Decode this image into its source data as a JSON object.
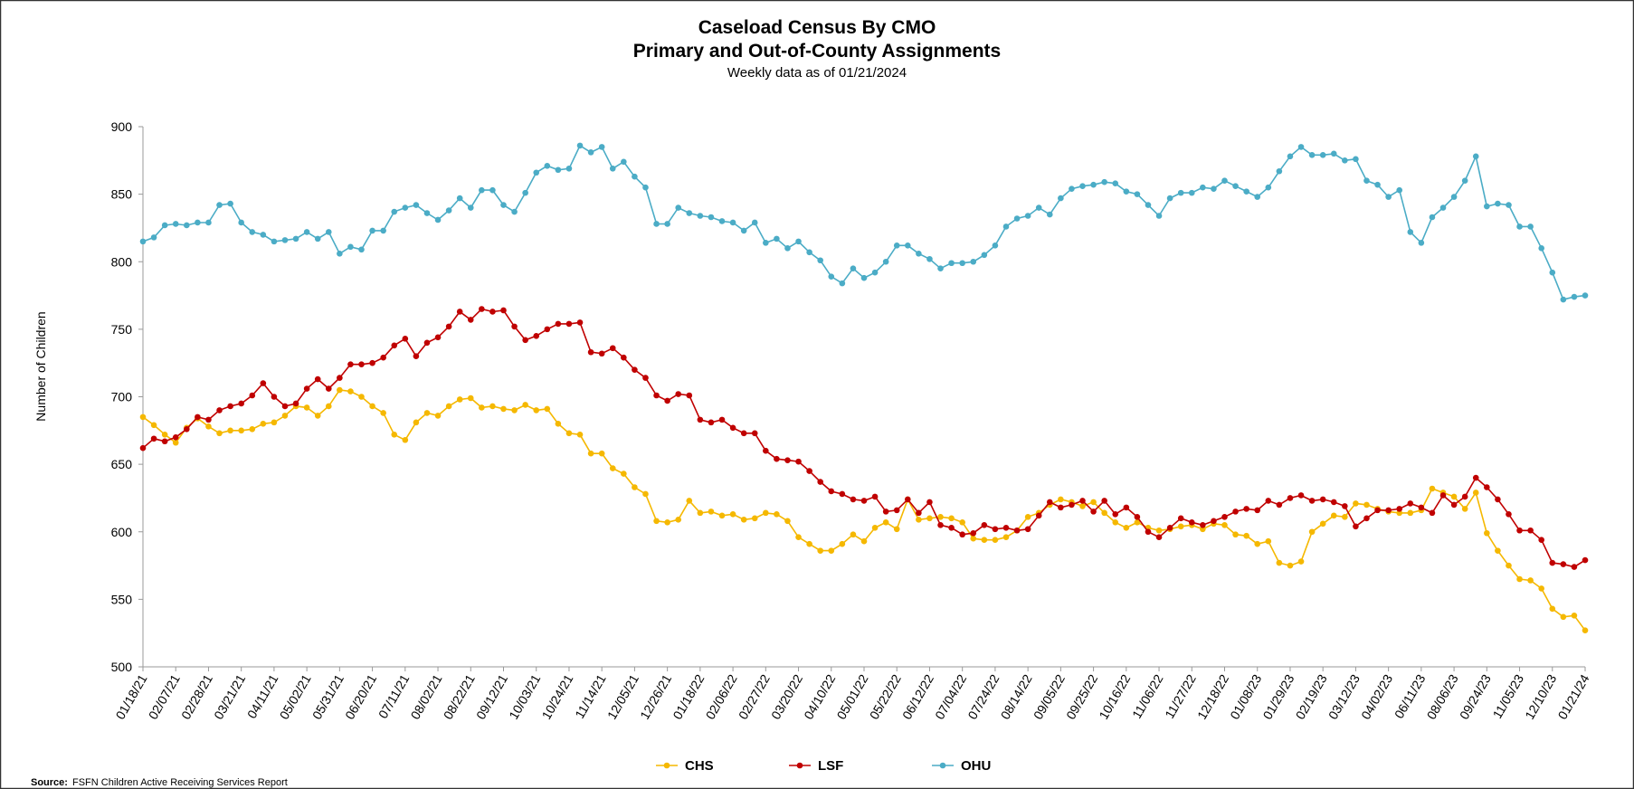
{
  "chart_data": {
    "type": "line",
    "title": "Caseload Census By CMO",
    "subtitle": "Primary and Out-of-County Assignments",
    "note": "Weekly data as of 01/21/2024",
    "y_label": "Number of Children",
    "source_label": "Source:",
    "source": "FSFN Children Active Receiving Services Report",
    "ylim": [
      500,
      900
    ],
    "yticks": [
      500,
      550,
      600,
      650,
      700,
      750,
      800,
      850,
      900
    ],
    "grid": false,
    "legend": "bottom",
    "categories": [
      "01/18/21",
      null,
      null,
      "02/07/21",
      null,
      null,
      "02/28/21",
      null,
      null,
      "03/21/21",
      null,
      null,
      "04/11/21",
      null,
      null,
      "05/02/21",
      null,
      null,
      "05/31/21",
      null,
      null,
      "06/20/21",
      null,
      null,
      "07/11/21",
      null,
      null,
      "08/02/21",
      null,
      null,
      "08/22/21",
      null,
      null,
      "09/12/21",
      null,
      null,
      "10/03/21",
      null,
      null,
      "10/24/21",
      null,
      null,
      "11/14/21",
      null,
      null,
      "12/05/21",
      null,
      null,
      "12/26/21",
      null,
      null,
      "01/18/22",
      null,
      null,
      "02/06/22",
      null,
      null,
      "02/27/22",
      null,
      null,
      "03/20/22",
      null,
      null,
      "04/10/22",
      null,
      null,
      "05/01/22",
      null,
      null,
      "05/22/22",
      null,
      null,
      "06/12/22",
      null,
      null,
      "07/04/22",
      null,
      null,
      "07/24/22",
      null,
      null,
      "08/14/22",
      null,
      null,
      "09/05/22",
      null,
      null,
      "09/25/22",
      null,
      null,
      "10/16/22",
      null,
      null,
      "11/06/22",
      null,
      null,
      "11/27/22",
      null,
      null,
      "12/18/22",
      null,
      null,
      "01/08/23",
      null,
      null,
      "01/29/23",
      null,
      null,
      "02/19/23",
      null,
      null,
      "03/12/23",
      null,
      null,
      "04/02/23",
      null,
      null,
      "06/11/23",
      null,
      null,
      "08/06/23",
      null,
      null,
      "09/24/23",
      null,
      null,
      "11/05/23",
      null,
      null,
      "12/10/23",
      null,
      null,
      "01/21/24"
    ],
    "series": [
      {
        "name": "CHS",
        "color": "#f5b800",
        "values": [
          685,
          679,
          672,
          666,
          677,
          684,
          678,
          673,
          675,
          675,
          676,
          680,
          681,
          686,
          693,
          692,
          686,
          693,
          705,
          704,
          700,
          693,
          688,
          672,
          668,
          681,
          688,
          686,
          693,
          698,
          699,
          692,
          693,
          691,
          690,
          694,
          690,
          691,
          680,
          673,
          672,
          658,
          658,
          647,
          643,
          633,
          628,
          608,
          607,
          609,
          623,
          614,
          615,
          612,
          613,
          609,
          610,
          614,
          613,
          608,
          596,
          591,
          586,
          586,
          591,
          598,
          593,
          603,
          607,
          602,
          624,
          609,
          610,
          611,
          610,
          607,
          595,
          594,
          594,
          596,
          601,
          611,
          614,
          620,
          624,
          622,
          619,
          622,
          614,
          607,
          603,
          607,
          603,
          601,
          602,
          604,
          605,
          602,
          606,
          605,
          598,
          597,
          591,
          593,
          577,
          575,
          578,
          600,
          606,
          612,
          611,
          621,
          620,
          617,
          615,
          614,
          614,
          616,
          632,
          629,
          626,
          617,
          629,
          599,
          586,
          575,
          565,
          564,
          558,
          543,
          537,
          538,
          527
        ]
      },
      {
        "name": "LSF",
        "color": "#c00000",
        "values": [
          662,
          669,
          667,
          670,
          676,
          685,
          683,
          690,
          693,
          695,
          701,
          710,
          700,
          693,
          695,
          706,
          713,
          706,
          714,
          724,
          724,
          725,
          729,
          738,
          743,
          730,
          740,
          744,
          752,
          763,
          757,
          765,
          763,
          764,
          752,
          742,
          745,
          750,
          754,
          754,
          755,
          733,
          732,
          736,
          729,
          720,
          714,
          701,
          697,
          702,
          701,
          683,
          681,
          683,
          677,
          673,
          673,
          660,
          654,
          653,
          652,
          645,
          637,
          630,
          628,
          624,
          623,
          626,
          615,
          616,
          624,
          614,
          622,
          605,
          603,
          598,
          599,
          605,
          602,
          603,
          601,
          602,
          612,
          622,
          618,
          620,
          623,
          615,
          623,
          613,
          618,
          611,
          600,
          596,
          603,
          610,
          607,
          605,
          608,
          611,
          615,
          617,
          616,
          623,
          620,
          625,
          627,
          623,
          624,
          622,
          619,
          604,
          610,
          616,
          616,
          617,
          621,
          618,
          614,
          627,
          620,
          626,
          640,
          633,
          624,
          613,
          601,
          601,
          594,
          577,
          576,
          574,
          579
        ]
      },
      {
        "name": "OHU",
        "color": "#4bacc6",
        "values": [
          815,
          818,
          827,
          828,
          827,
          829,
          829,
          842,
          843,
          829,
          822,
          820,
          815,
          816,
          817,
          822,
          817,
          822,
          806,
          811,
          809,
          823,
          823,
          837,
          840,
          842,
          836,
          831,
          838,
          847,
          840,
          853,
          853,
          842,
          837,
          851,
          866,
          871,
          868,
          869,
          886,
          881,
          885,
          869,
          874,
          863,
          855,
          828,
          828,
          840,
          836,
          834,
          833,
          830,
          829,
          823,
          829,
          814,
          817,
          810,
          815,
          807,
          801,
          789,
          784,
          795,
          788,
          792,
          800,
          812,
          812,
          806,
          802,
          795,
          799,
          799,
          800,
          805,
          812,
          826,
          832,
          834,
          840,
          835,
          847,
          854,
          856,
          857,
          859,
          858,
          852,
          850,
          842,
          834,
          847,
          851,
          851,
          855,
          854,
          860,
          856,
          852,
          848,
          855,
          867,
          878,
          885,
          879,
          879,
          880,
          875,
          876,
          860,
          857,
          848,
          853,
          822,
          814,
          833,
          840,
          848,
          860,
          878,
          841,
          843,
          842,
          826,
          826,
          810,
          792,
          772,
          774,
          775
        ]
      }
    ]
  }
}
